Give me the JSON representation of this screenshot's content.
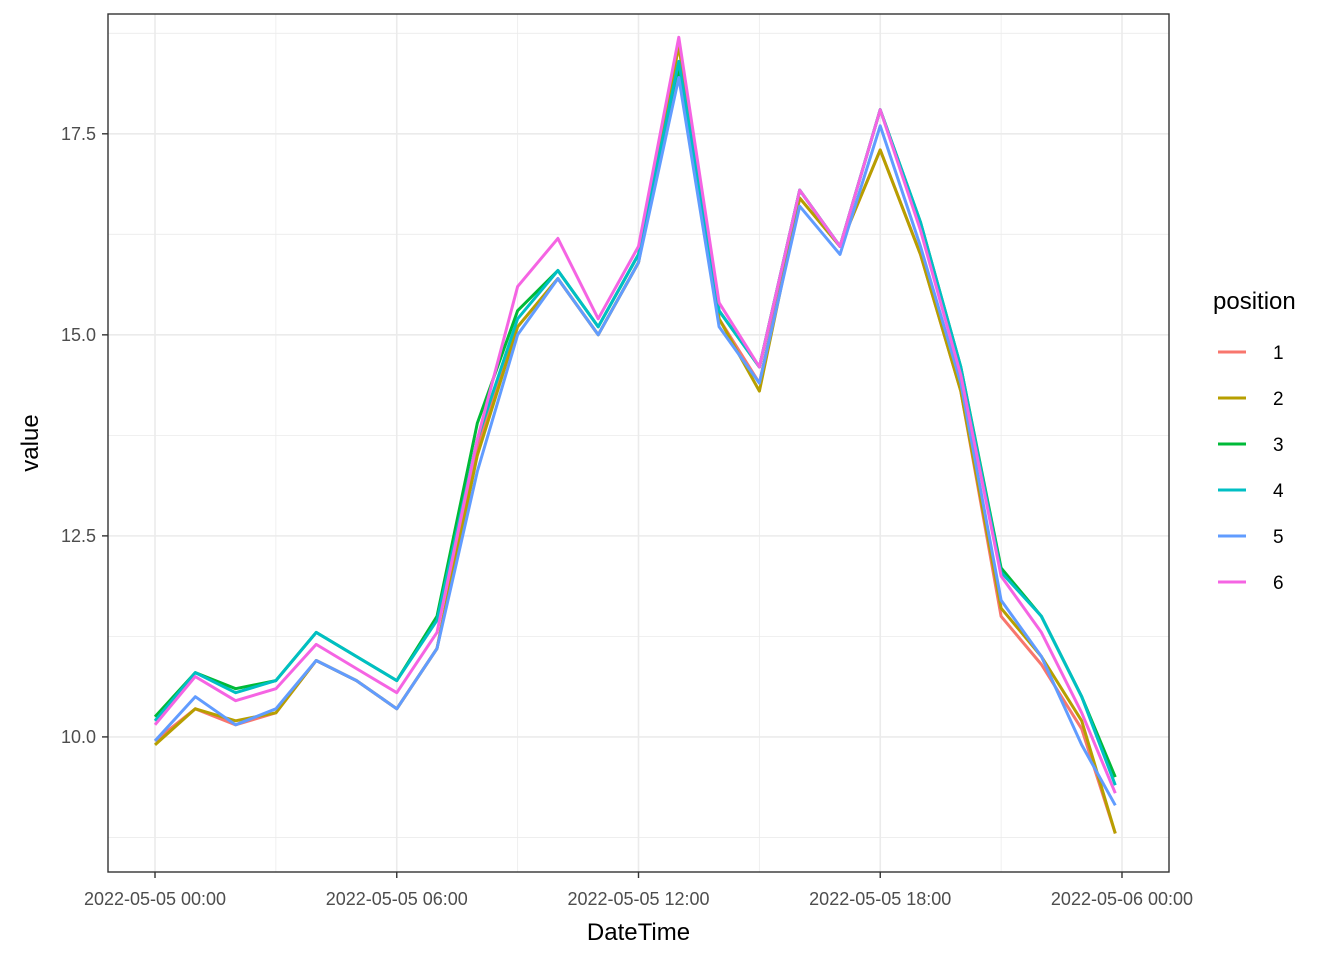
{
  "chart_data": {
    "type": "line",
    "xlabel": "DateTime",
    "ylabel": "value",
    "x_ticks": [
      "2022-05-05 00:00",
      "2022-05-05 06:00",
      "2022-05-05 12:00",
      "2022-05-05 18:00",
      "2022-05-06 00:00"
    ],
    "y_ticks": [
      "10.0",
      "12.5",
      "15.0",
      "17.5"
    ],
    "xlim": [
      "2022-05-04 22:50",
      "2022-05-06 01:10"
    ],
    "ylim": [
      8.32,
      18.99
    ],
    "grid": true,
    "legend_title": "position",
    "legend_position": "right",
    "x": [
      "2022-05-05 00:00",
      "2022-05-05 01:00",
      "2022-05-05 02:00",
      "2022-05-05 03:00",
      "2022-05-05 04:00",
      "2022-05-05 05:00",
      "2022-05-05 06:00",
      "2022-05-05 07:00",
      "2022-05-05 08:00",
      "2022-05-05 09:00",
      "2022-05-05 10:00",
      "2022-05-05 11:00",
      "2022-05-05 12:00",
      "2022-05-05 13:00",
      "2022-05-05 14:00",
      "2022-05-05 15:00",
      "2022-05-05 16:00",
      "2022-05-05 17:00",
      "2022-05-05 18:00",
      "2022-05-05 19:00",
      "2022-05-05 20:00",
      "2022-05-05 21:00",
      "2022-05-05 22:00",
      "2022-05-05 23:00",
      "2022-05-05 23:50"
    ],
    "series": [
      {
        "name": "1",
        "color": "#F8766D",
        "values": [
          9.95,
          10.35,
          10.15,
          10.3,
          10.95,
          10.7,
          10.35,
          11.1,
          13.6,
          15.1,
          15.7,
          15.0,
          15.9,
          18.6,
          15.2,
          14.4,
          16.7,
          16.1,
          17.3,
          16.0,
          14.3,
          11.5,
          10.9,
          10.1,
          8.8
        ]
      },
      {
        "name": "2",
        "color": "#B79F00",
        "values": [
          9.9,
          10.35,
          10.2,
          10.3,
          10.95,
          10.7,
          10.35,
          11.1,
          13.5,
          15.1,
          15.7,
          15.0,
          15.9,
          18.6,
          15.2,
          14.3,
          16.7,
          16.1,
          17.3,
          16.0,
          14.3,
          11.6,
          11.0,
          10.2,
          8.8
        ]
      },
      {
        "name": "3",
        "color": "#00BA38",
        "values": [
          10.25,
          10.8,
          10.6,
          10.7,
          11.3,
          11.0,
          10.7,
          11.5,
          13.9,
          15.3,
          15.8,
          15.1,
          16.0,
          18.3,
          15.3,
          14.6,
          16.8,
          16.1,
          17.8,
          16.4,
          14.6,
          12.1,
          11.5,
          10.5,
          9.5
        ]
      },
      {
        "name": "4",
        "color": "#00BFC4",
        "values": [
          10.2,
          10.8,
          10.55,
          10.7,
          11.3,
          11.0,
          10.7,
          11.45,
          13.7,
          15.2,
          15.8,
          15.1,
          16.0,
          18.4,
          15.3,
          14.6,
          16.8,
          16.1,
          17.8,
          16.4,
          14.6,
          12.05,
          11.5,
          10.5,
          9.4
        ]
      },
      {
        "name": "5",
        "color": "#619CFF",
        "values": [
          9.95,
          10.5,
          10.15,
          10.35,
          10.95,
          10.7,
          10.35,
          11.1,
          13.3,
          15.0,
          15.7,
          15.0,
          15.9,
          18.2,
          15.1,
          14.4,
          16.6,
          16.0,
          17.6,
          16.1,
          14.4,
          11.7,
          11.0,
          9.9,
          9.15
        ]
      },
      {
        "name": "6",
        "color": "#F564E3",
        "values": [
          10.15,
          10.75,
          10.45,
          10.6,
          11.15,
          10.85,
          10.55,
          11.3,
          13.7,
          15.6,
          16.2,
          15.2,
          16.1,
          18.7,
          15.4,
          14.6,
          16.8,
          16.1,
          17.8,
          16.3,
          14.5,
          12.0,
          11.3,
          10.3,
          9.3
        ]
      }
    ]
  }
}
